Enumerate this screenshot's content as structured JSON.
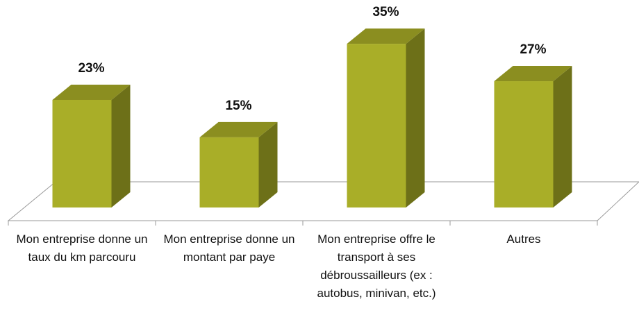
{
  "chart_data": {
    "type": "bar3d",
    "categories": [
      "Mon entreprise donne un taux du km parcouru",
      "Mon entreprise donne un montant par paye",
      "Mon entreprise offre le transport à ses débroussailleurs (ex : autobus, minivan, etc.)",
      "Autres"
    ],
    "values": [
      23,
      15,
      35,
      27
    ],
    "value_labels": [
      "23%",
      "15%",
      "35%",
      "27%"
    ],
    "color": "#a9ae28"
  }
}
